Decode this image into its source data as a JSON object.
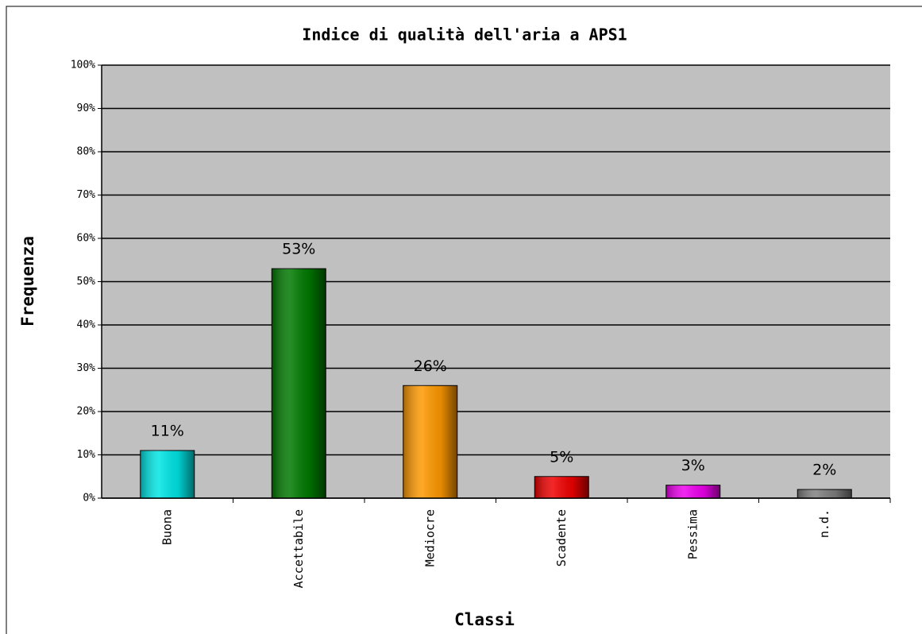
{
  "chart_data": {
    "type": "bar",
    "title": "Indice di qualità dell'aria a APS1",
    "x_label": "Classi",
    "y_label": "Frequenza",
    "categories": [
      "Buona",
      "Accettabile",
      "Mediocre",
      "Scadente",
      "Pessima",
      "n.d."
    ],
    "values": [
      11,
      53,
      26,
      5,
      3,
      2
    ],
    "value_labels": [
      "11%",
      "53%",
      "26%",
      "5%",
      "3%",
      "2%"
    ],
    "colors": [
      "#00e5e5",
      "#007a00",
      "#ff9900",
      "#f00000",
      "#ee00ee",
      "#808080"
    ],
    "ylim": [
      0,
      100
    ],
    "yticks": [
      {
        "value": 0,
        "label": "0%"
      },
      {
        "value": 10,
        "label": "10%"
      },
      {
        "value": 20,
        "label": "20%"
      },
      {
        "value": 30,
        "label": "30%"
      },
      {
        "value": 40,
        "label": "40%"
      },
      {
        "value": 50,
        "label": "50%"
      },
      {
        "value": 60,
        "label": "60%"
      },
      {
        "value": 70,
        "label": "70%"
      },
      {
        "value": 80,
        "label": "80%"
      },
      {
        "value": 90,
        "label": "90%"
      },
      {
        "value": 100,
        "label": "100%"
      }
    ],
    "grid": true
  }
}
